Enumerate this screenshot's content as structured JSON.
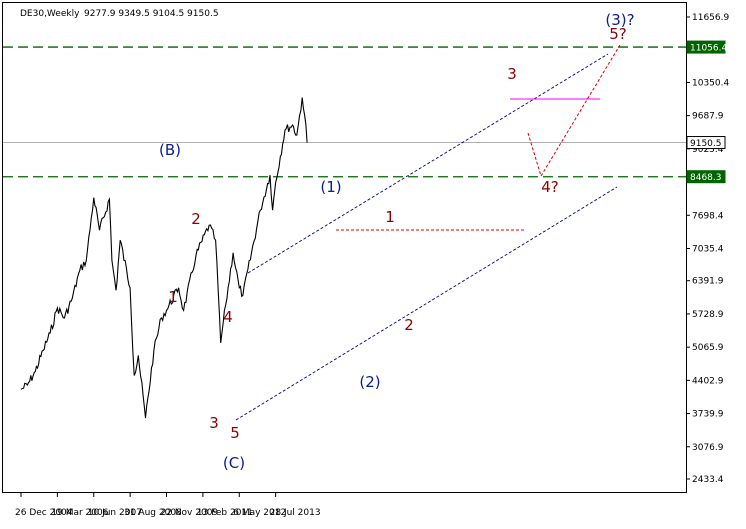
{
  "header": {
    "symbol": "DE30,Weekly",
    "ohlc": "9277.9 9349.5 9104.5 9150.5"
  },
  "colors": {
    "price": "#000000",
    "wave_red": "#8b0000",
    "wave_blue": "#0a1e8c",
    "green_line": "#006400",
    "channel_blue": "#00008b",
    "projection_red": "#e00000",
    "magenta": "#ff00ff",
    "grid_gray": "#b0b0b0"
  },
  "chart_data": {
    "type": "line",
    "series": [
      {
        "values_points": [
          [
            "2004-12-26",
            4220
          ],
          [
            "2005-03-15",
            4310
          ],
          [
            "2005-06-20",
            4580
          ],
          [
            "2005-09-25",
            5000
          ],
          [
            "2005-12-20",
            5350
          ],
          [
            "2006-03-19",
            5850
          ],
          [
            "2006-06-15",
            5650
          ],
          [
            "2006-09-20",
            6050
          ],
          [
            "2006-12-20",
            6600
          ],
          [
            "2007-03-10",
            6800
          ],
          [
            "2007-06-10",
            8050
          ],
          [
            "2007-08-20",
            7400
          ],
          [
            "2007-12-20",
            8020
          ],
          [
            "2008-01-20",
            6800
          ],
          [
            "2008-03-10",
            6200
          ],
          [
            "2008-05-01",
            7200
          ],
          [
            "2008-08-31",
            6250
          ],
          [
            "2008-10-20",
            4500
          ],
          [
            "2008-12-10",
            4900
          ],
          [
            "2009-03-08",
            3650
          ],
          [
            "2009-06-20",
            5000
          ],
          [
            "2009-09-20",
            5650
          ],
          [
            "2009-11-22",
            5800
          ],
          [
            "2010-04-20",
            6250
          ],
          [
            "2010-06-20",
            5800
          ],
          [
            "2010-11-20",
            6900
          ],
          [
            "2011-05-01",
            7500
          ],
          [
            "2011-07-20",
            7200
          ],
          [
            "2011-09-20",
            5150
          ],
          [
            "2011-11-20",
            5900
          ],
          [
            "2012-02-20",
            6950
          ],
          [
            "2012-05-06",
            6250
          ],
          [
            "2012-06-20",
            6100
          ],
          [
            "2013-01-20",
            7800
          ],
          [
            "2013-05-20",
            8500
          ],
          [
            "2013-06-20",
            7800
          ],
          [
            "2013-07-28",
            8350
          ],
          [
            "2013-11-20",
            9400
          ],
          [
            "2014-02-20",
            9500
          ],
          [
            "2014-04-15",
            9300
          ],
          [
            "2014-06-20",
            10050
          ],
          [
            "2014-07-20",
            9700
          ],
          [
            "2014-08-20",
            9150
          ]
        ],
        "name": ""
      }
    ],
    "y_ticks": [
      "11656.9",
      "10350.4",
      "9687.9",
      "9025.4",
      "7698.4",
      "7035.4",
      "6391.9",
      "5728.9",
      "5065.9",
      "4402.9",
      "3739.9",
      "3076.9",
      "2433.4"
    ],
    "x_ticks": [
      "26 Dec 2004",
      "19 Mar 2006",
      "10 Jun 2007",
      "31 Aug 2008",
      "22 Nov 2009",
      "13 Feb 2011",
      "6 May 2012",
      "28 Jul 2013"
    ],
    "price_tags": [
      {
        "label": "11056.4",
        "style": "green"
      },
      {
        "label": "9150.5",
        "style": "white"
      },
      {
        "label": "8468.3",
        "style": "green"
      }
    ],
    "wave_labels": {
      "red": [
        "1",
        "2",
        "4",
        "3",
        "5",
        "1",
        "2",
        "3",
        "4?",
        "5?"
      ],
      "blue": [
        "(B)",
        "(C)",
        "(1)",
        "(2)",
        "(3)?"
      ]
    },
    "ylim": [
      2300,
      11950
    ],
    "grid": false
  }
}
